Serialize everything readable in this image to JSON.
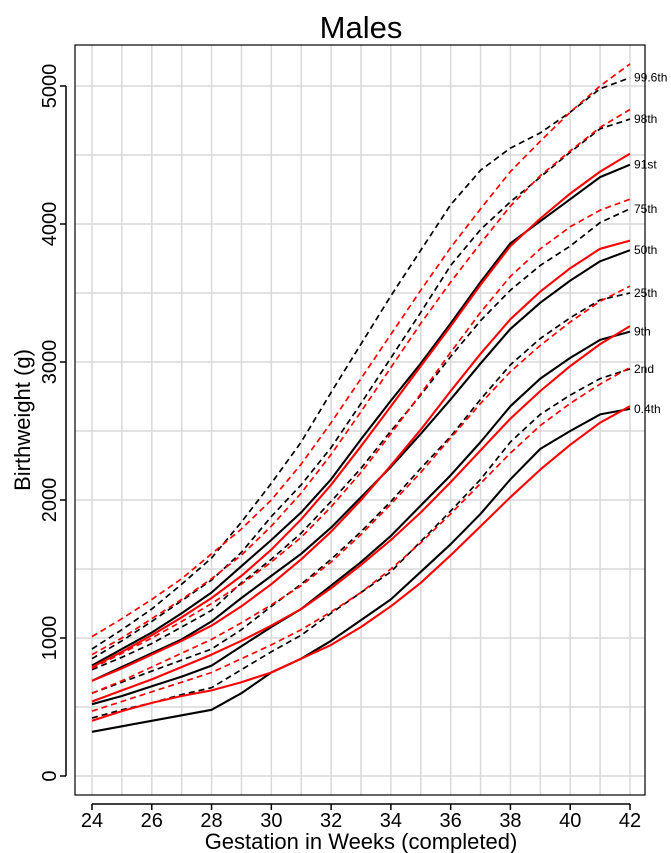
{
  "chart_data": {
    "type": "line",
    "title": "Males",
    "xlabel": "Gestation in Weeks (completed)",
    "ylabel": "Birthweight (g)",
    "xlim": [
      24,
      42
    ],
    "ylim": [
      0,
      5200
    ],
    "x_ticks": [
      24,
      26,
      28,
      30,
      32,
      34,
      36,
      38,
      40,
      42
    ],
    "y_ticks": [
      0,
      1000,
      2000,
      3000,
      4000,
      5000
    ],
    "grid": true,
    "colors": {
      "black": "#000000",
      "red": "#ff0000",
      "grid": "#d9d9d9"
    },
    "x": [
      24,
      25,
      26,
      27,
      28,
      29,
      30,
      31,
      32,
      33,
      34,
      35,
      36,
      37,
      38,
      39,
      40,
      41,
      42
    ],
    "centile_labels": [
      "99.6th",
      "98th",
      "91st",
      "75th",
      "50th",
      "25th",
      "9th",
      "2nd",
      "0.4th"
    ],
    "series": [
      {
        "group": "black",
        "style": "solid",
        "values": [
          320,
          360,
          400,
          440,
          480,
          600,
          750,
          850,
          980,
          1130,
          1280,
          1480,
          1680,
          1900,
          2150,
          2370,
          2500,
          2620,
          2660
        ]
      },
      {
        "group": "black",
        "style": "dashed",
        "values": [
          420,
          480,
          530,
          590,
          640,
          770,
          900,
          1020,
          1180,
          1330,
          1480,
          1700,
          1920,
          2150,
          2420,
          2620,
          2760,
          2880,
          2950
        ]
      },
      {
        "group": "black",
        "style": "solid",
        "values": [
          520,
          580,
          650,
          720,
          800,
          940,
          1080,
          1210,
          1380,
          1550,
          1740,
          1960,
          2180,
          2420,
          2680,
          2880,
          3030,
          3160,
          3220
        ]
      },
      {
        "group": "black",
        "style": "dashed",
        "values": [
          600,
          680,
          760,
          840,
          920,
          1060,
          1230,
          1390,
          1570,
          1770,
          1990,
          2230,
          2460,
          2730,
          2980,
          3170,
          3320,
          3450,
          3500
        ]
      },
      {
        "group": "black",
        "style": "solid",
        "values": [
          690,
          790,
          890,
          990,
          1120,
          1290,
          1450,
          1610,
          1800,
          2020,
          2240,
          2480,
          2730,
          2990,
          3240,
          3430,
          3590,
          3730,
          3810
        ]
      },
      {
        "group": "black",
        "style": "dashed",
        "values": [
          770,
          860,
          960,
          1080,
          1200,
          1400,
          1570,
          1760,
          1990,
          2230,
          2500,
          2760,
          3040,
          3300,
          3520,
          3700,
          3840,
          4010,
          4110
        ]
      },
      {
        "group": "black",
        "style": "solid",
        "values": [
          800,
          920,
          1040,
          1180,
          1330,
          1520,
          1710,
          1910,
          2150,
          2440,
          2720,
          2990,
          3280,
          3580,
          3860,
          4020,
          4180,
          4340,
          4430
        ]
      },
      {
        "group": "black",
        "style": "dashed",
        "values": [
          850,
          980,
          1120,
          1270,
          1420,
          1620,
          1880,
          2110,
          2380,
          2700,
          3030,
          3360,
          3700,
          3960,
          4160,
          4340,
          4520,
          4690,
          4760
        ]
      },
      {
        "group": "black",
        "style": "dashed",
        "values": [
          920,
          1060,
          1210,
          1390,
          1580,
          1840,
          2120,
          2420,
          2780,
          3130,
          3480,
          3810,
          4140,
          4390,
          4550,
          4660,
          4810,
          4980,
          5060
        ]
      },
      {
        "group": "red",
        "style": "solid",
        "values": [
          400,
          470,
          530,
          580,
          620,
          680,
          750,
          850,
          950,
          1080,
          1230,
          1400,
          1600,
          1810,
          2020,
          2220,
          2400,
          2560,
          2680
        ]
      },
      {
        "group": "red",
        "style": "dashed",
        "values": [
          470,
          540,
          610,
          680,
          750,
          850,
          950,
          1060,
          1190,
          1330,
          1500,
          1690,
          1900,
          2120,
          2340,
          2540,
          2700,
          2840,
          2960
        ]
      },
      {
        "group": "red",
        "style": "solid",
        "values": [
          540,
          620,
          700,
          790,
          880,
          980,
          1090,
          1210,
          1360,
          1530,
          1710,
          1910,
          2130,
          2360,
          2590,
          2790,
          2970,
          3130,
          3260
        ]
      },
      {
        "group": "red",
        "style": "dashed",
        "values": [
          600,
          690,
          790,
          890,
          990,
          1110,
          1240,
          1380,
          1550,
          1750,
          1970,
          2200,
          2450,
          2700,
          2930,
          3120,
          3290,
          3440,
          3550
        ]
      },
      {
        "group": "red",
        "style": "solid",
        "values": [
          690,
          780,
          880,
          980,
          1090,
          1230,
          1390,
          1570,
          1770,
          2000,
          2250,
          2510,
          2790,
          3060,
          3310,
          3510,
          3680,
          3820,
          3880
        ]
      },
      {
        "group": "red",
        "style": "dashed",
        "values": [
          780,
          890,
          1000,
          1120,
          1250,
          1390,
          1550,
          1730,
          1950,
          2200,
          2480,
          2770,
          3070,
          3360,
          3620,
          3820,
          3980,
          4100,
          4180
        ]
      },
      {
        "group": "red",
        "style": "solid",
        "values": [
          790,
          900,
          1020,
          1150,
          1290,
          1450,
          1640,
          1860,
          2110,
          2390,
          2680,
          2970,
          3260,
          3560,
          3840,
          4040,
          4220,
          4380,
          4510
        ]
      },
      {
        "group": "red",
        "style": "dashed",
        "values": [
          880,
          1000,
          1140,
          1280,
          1430,
          1600,
          1810,
          2050,
          2330,
          2640,
          2960,
          3280,
          3580,
          3860,
          4130,
          4350,
          4530,
          4700,
          4830
        ]
      },
      {
        "group": "red",
        "style": "dashed",
        "values": [
          1010,
          1140,
          1280,
          1430,
          1610,
          1790,
          2000,
          2260,
          2560,
          2880,
          3200,
          3520,
          3830,
          4110,
          4380,
          4600,
          4810,
          5000,
          5160
        ]
      }
    ]
  }
}
